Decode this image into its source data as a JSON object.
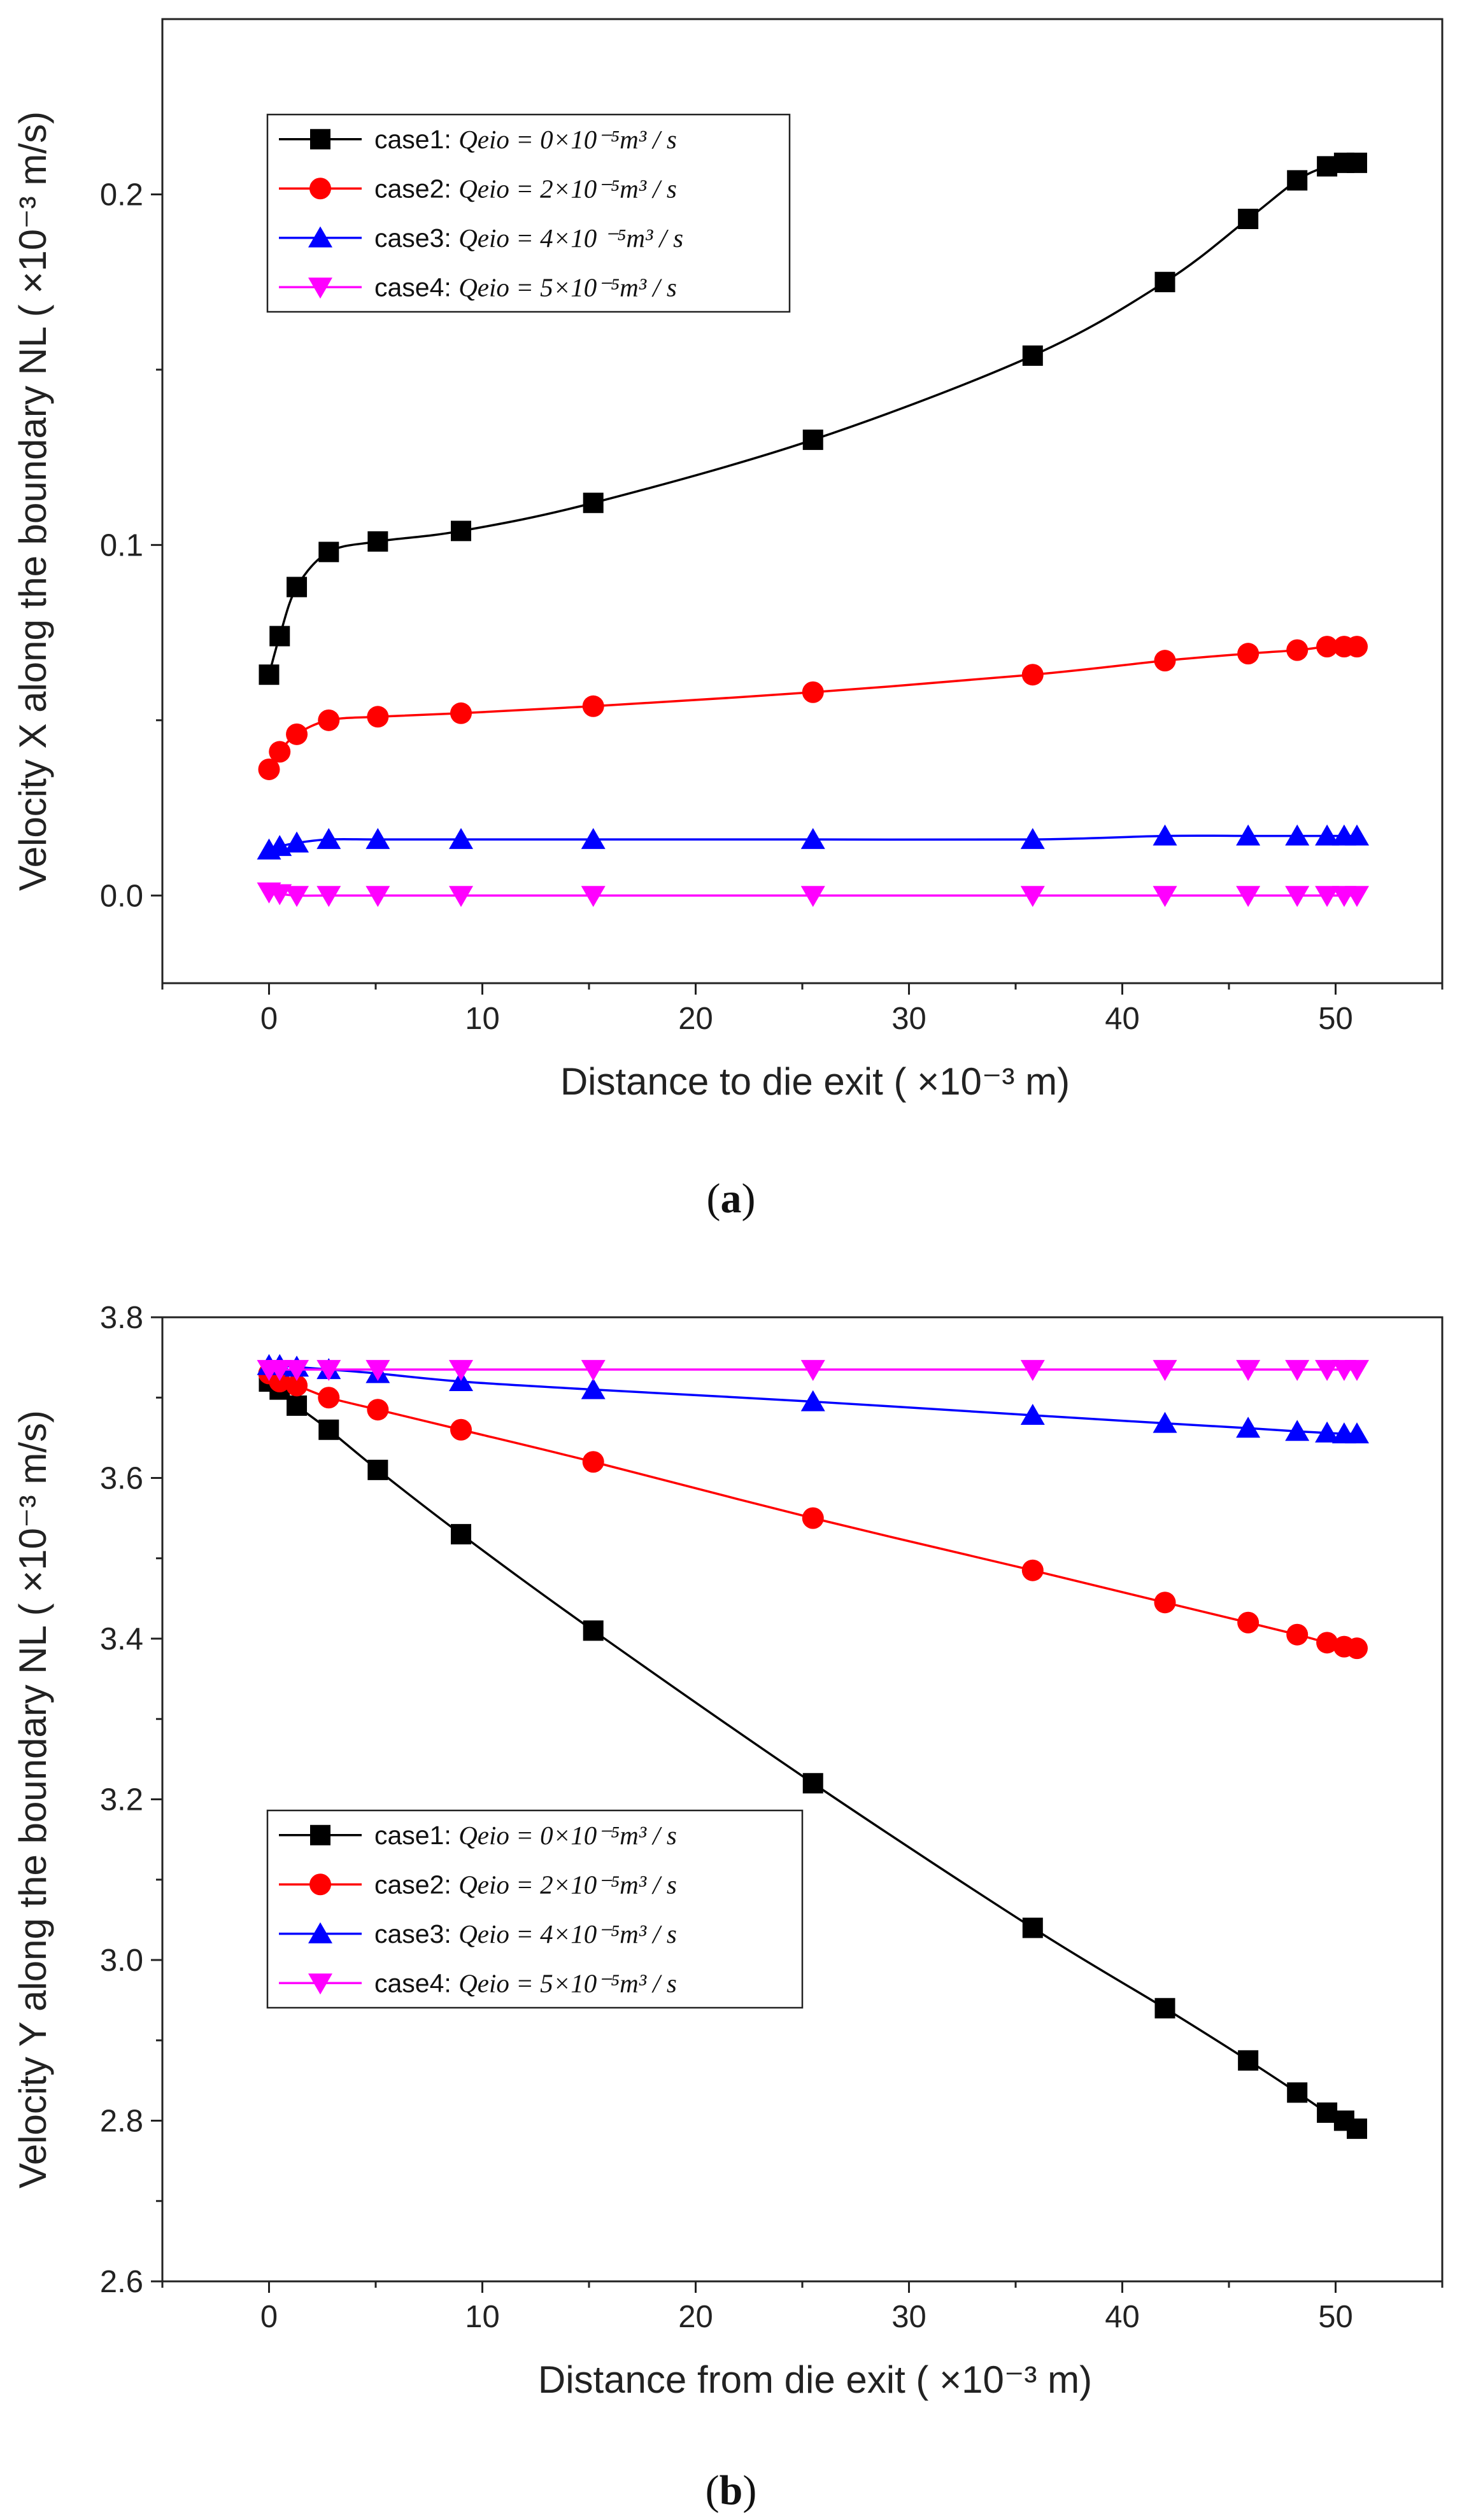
{
  "chart_data": [
    {
      "type": "line",
      "panel_label": "a",
      "xlabel": "Distance to die exit ( ×10⁻³ m)",
      "ylabel": "Velocity X along the boundary NL ( ×10⁻³ m/s)",
      "xlim": [
        -5,
        55
      ],
      "ylim": [
        -0.025,
        0.25
      ],
      "xticks": [
        0,
        10,
        20,
        30,
        40,
        50
      ],
      "yticks": [
        0.0,
        0.1,
        0.2
      ],
      "ytick_labels": [
        "0.0",
        "0.1",
        "0.2"
      ],
      "legend_position": "top-left",
      "x": [
        0,
        0.5,
        1.3,
        2.8,
        5.1,
        9.0,
        15.2,
        25.5,
        35.8,
        42.0,
        45.9,
        48.2,
        49.6,
        50.4,
        51.0
      ],
      "series": [
        {
          "name": "case1",
          "formula": "Qeio = 0×10⁻⁵m³ / s",
          "color": "#000000",
          "marker": "square",
          "values": [
            0.063,
            0.074,
            0.088,
            0.098,
            0.101,
            0.104,
            0.112,
            0.13,
            0.154,
            0.175,
            0.193,
            0.204,
            0.208,
            0.209,
            0.209
          ]
        },
        {
          "name": "case2",
          "formula": "Qeio = 2×10⁻⁵m³ / s",
          "color": "#ff0000",
          "marker": "circle",
          "values": [
            0.036,
            0.041,
            0.046,
            0.05,
            0.051,
            0.052,
            0.054,
            0.058,
            0.063,
            0.067,
            0.069,
            0.07,
            0.071,
            0.071,
            0.071
          ]
        },
        {
          "name": "case3",
          "formula": "Qeio = 4×10 ⁻⁵m³ / s",
          "color": "#0000ff",
          "marker": "triangle-up",
          "values": [
            0.013,
            0.014,
            0.015,
            0.016,
            0.016,
            0.016,
            0.016,
            0.016,
            0.016,
            0.017,
            0.017,
            0.017,
            0.017,
            0.017,
            0.017
          ]
        },
        {
          "name": "case4",
          "formula": "Qeio = 5×10⁻⁵m³ / s",
          "color": "#ff00ff",
          "marker": "triangle-down",
          "values": [
            0.001,
            0.0005,
            0.0,
            0.0,
            0.0,
            0.0,
            0.0,
            0.0,
            0.0,
            0.0,
            0.0,
            0.0,
            0.0,
            0.0,
            0.0
          ]
        }
      ]
    },
    {
      "type": "line",
      "panel_label": "b",
      "xlabel": "Distance from die exit ( ×10⁻³ m)",
      "ylabel": "Velocity Y along the boundary NL ( ×10⁻³ m/s)",
      "xlim": [
        -5,
        55
      ],
      "ylim": [
        2.6,
        3.8
      ],
      "xticks": [
        0,
        10,
        20,
        30,
        40,
        50
      ],
      "yticks": [
        2.6,
        2.8,
        3.0,
        3.2,
        3.4,
        3.6,
        3.8
      ],
      "ytick_labels": [
        "2.6",
        "2.8",
        "3.0",
        "3.2",
        "3.4",
        "3.6",
        "3.8"
      ],
      "legend_position": "lower-left",
      "x": [
        0,
        0.5,
        1.3,
        2.8,
        5.1,
        9.0,
        15.2,
        25.5,
        35.8,
        42.0,
        45.9,
        48.2,
        49.6,
        50.4,
        51.0
      ],
      "series": [
        {
          "name": "case1",
          "formula": "Qeio = 0×10⁻⁵m³ / s",
          "color": "#000000",
          "marker": "square",
          "values": [
            3.72,
            3.71,
            3.69,
            3.66,
            3.61,
            3.53,
            3.41,
            3.22,
            3.04,
            2.94,
            2.875,
            2.835,
            2.81,
            2.8,
            2.79
          ]
        },
        {
          "name": "case2",
          "formula": "Qeio = 2×10⁻⁵m³ / s",
          "color": "#ff0000",
          "marker": "circle",
          "values": [
            3.73,
            3.72,
            3.715,
            3.7,
            3.685,
            3.66,
            3.62,
            3.55,
            3.485,
            3.445,
            3.42,
            3.405,
            3.395,
            3.39,
            3.388
          ]
        },
        {
          "name": "case3",
          "formula": "Qeio = 4×10⁻⁵m³ / s",
          "color": "#0000ff",
          "marker": "triangle-up",
          "values": [
            3.74,
            3.74,
            3.738,
            3.735,
            3.73,
            3.72,
            3.71,
            3.695,
            3.678,
            3.668,
            3.662,
            3.658,
            3.656,
            3.655,
            3.655
          ]
        },
        {
          "name": "case4",
          "formula": "Qeio = 5×10⁻⁵m³ / s",
          "color": "#ff00ff",
          "marker": "triangle-down",
          "values": [
            3.735,
            3.735,
            3.735,
            3.735,
            3.735,
            3.735,
            3.735,
            3.735,
            3.735,
            3.735,
            3.735,
            3.735,
            3.735,
            3.735,
            3.735
          ]
        }
      ]
    }
  ]
}
